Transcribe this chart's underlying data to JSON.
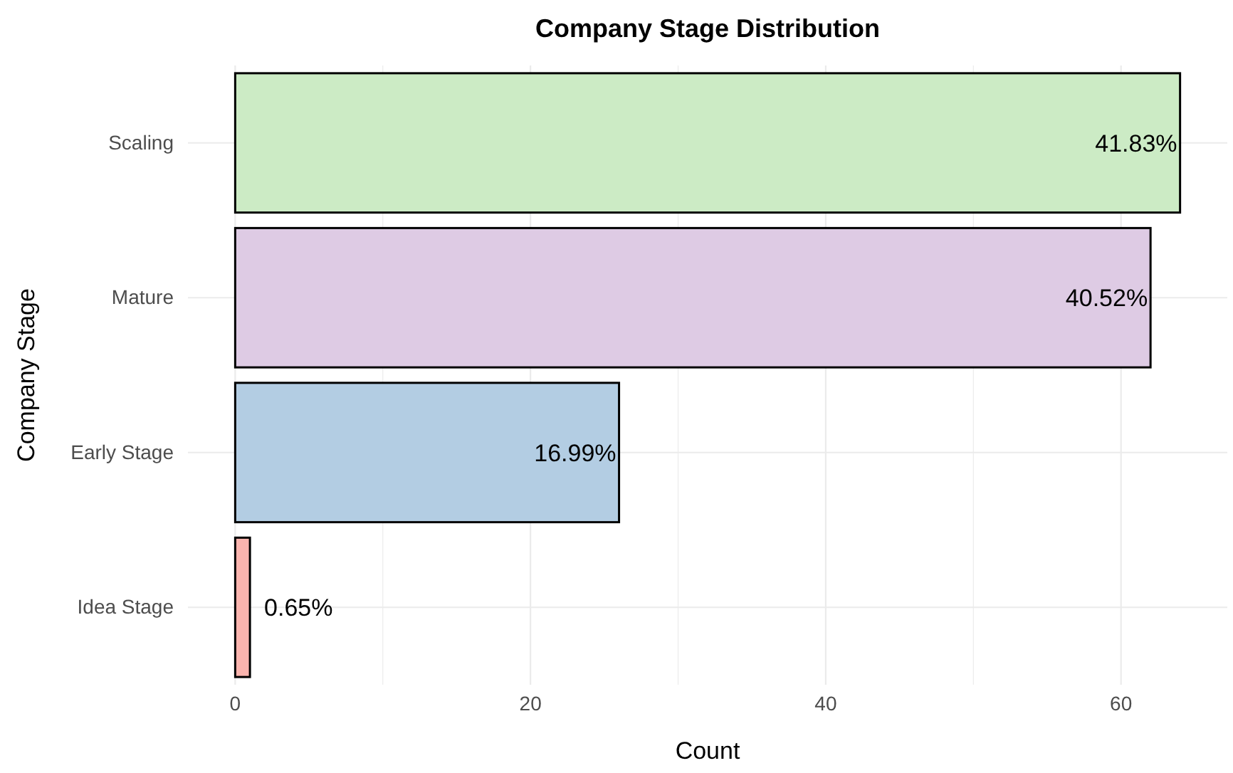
{
  "chart_data": {
    "type": "bar",
    "orientation": "horizontal",
    "title": "Company Stage Distribution",
    "xlabel": "Count",
    "ylabel": "Company Stage",
    "categories": [
      "Scaling",
      "Mature",
      "Early Stage",
      "Idea Stage"
    ],
    "values": [
      64,
      62,
      26,
      1
    ],
    "colors": [
      "#ccebc5",
      "#decbe4",
      "#b3cde3",
      "#fbb4ae"
    ],
    "annotations": [
      {
        "text": "41.83%",
        "x": 64,
        "y": "Scaling"
      },
      {
        "text": "40.52%",
        "x": 62,
        "y": "Mature"
      },
      {
        "text": "16.99%",
        "x": 26,
        "y": "Early Stage"
      },
      {
        "text": "0.65%",
        "x": 1,
        "y": "Idea Stage"
      }
    ],
    "xlim": [
      -3.2,
      67.2
    ],
    "xticks": [
      0,
      {
        "value": 10,
        "label": null
      },
      20,
      {
        "value": 30,
        "label": null
      },
      40,
      {
        "value": 50,
        "label": null
      },
      60
    ],
    "grid": true
  }
}
